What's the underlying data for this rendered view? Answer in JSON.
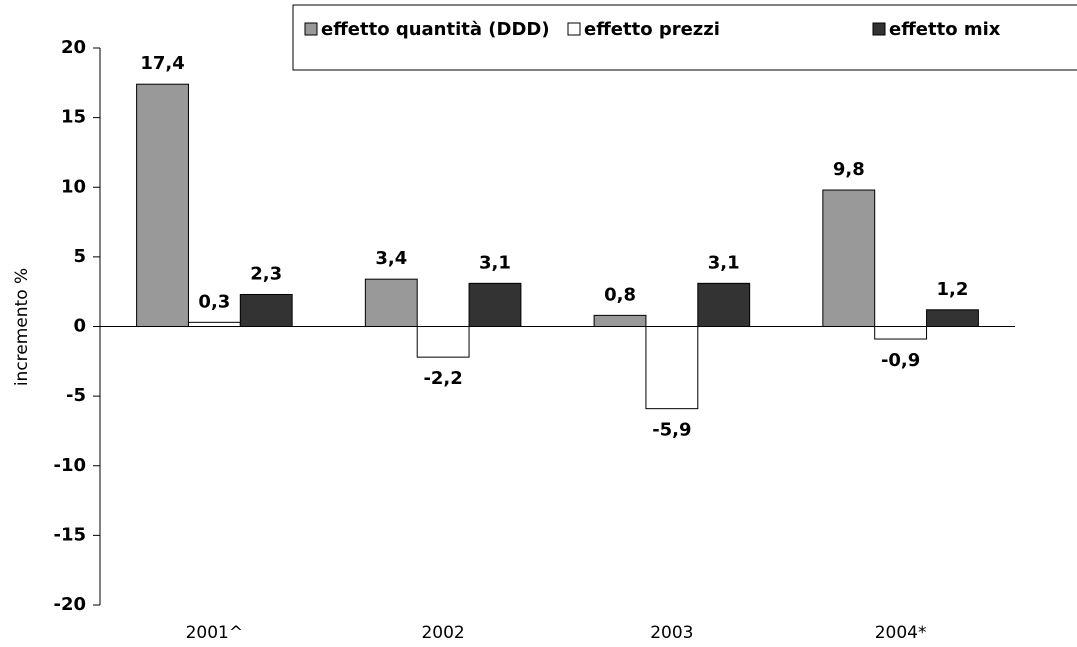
{
  "chart_data": {
    "type": "bar",
    "y_label": "incremento %",
    "categories": [
      "2001^",
      "2002",
      "2003",
      "2004*"
    ],
    "series": [
      {
        "name": "effetto quantità (DDD)",
        "color": "#999999",
        "values": [
          17.4,
          3.4,
          0.8,
          9.8
        ],
        "value_labels": [
          "17,4",
          "3,4",
          "0,8",
          "9,8"
        ]
      },
      {
        "name": "effetto prezzi",
        "color": "#ffffff",
        "values": [
          0.3,
          -2.2,
          -5.9,
          -0.9
        ],
        "value_labels": [
          "0,3",
          "-2,2",
          "-5,9",
          "-0,9"
        ]
      },
      {
        "name": "effetto mix",
        "color": "#333333",
        "values": [
          2.3,
          3.1,
          3.1,
          1.2
        ],
        "value_labels": [
          "2,3",
          "3,1",
          "3,1",
          "1,2"
        ]
      }
    ],
    "ylim": [
      -20,
      20
    ],
    "yticks": [
      -20,
      -15,
      -10,
      -5,
      0,
      5,
      10,
      15,
      20
    ],
    "grid": false,
    "legend": "top-right"
  }
}
